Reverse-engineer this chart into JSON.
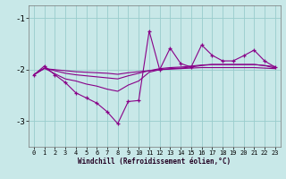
{
  "xlabel": "Windchill (Refroidissement éolien,°C)",
  "x": [
    0,
    1,
    2,
    3,
    4,
    5,
    6,
    7,
    8,
    9,
    10,
    11,
    12,
    13,
    14,
    15,
    16,
    17,
    18,
    19,
    20,
    21,
    22,
    23
  ],
  "main_line": [
    -2.1,
    -1.93,
    -2.1,
    -2.25,
    -2.45,
    -2.55,
    -2.65,
    -2.82,
    -3.05,
    -2.62,
    -2.6,
    -1.25,
    -2.0,
    -1.58,
    -1.88,
    -1.95,
    -1.52,
    -1.72,
    -1.83,
    -1.83,
    -1.73,
    -1.62,
    -1.83,
    -1.95
  ],
  "line2": [
    -2.1,
    -1.97,
    -2.08,
    -2.18,
    -2.22,
    -2.28,
    -2.32,
    -2.38,
    -2.42,
    -2.3,
    -2.22,
    -2.05,
    -2.0,
    -1.98,
    -1.97,
    -1.95,
    -1.92,
    -1.9,
    -1.9,
    -1.9,
    -1.9,
    -1.9,
    -1.92,
    -1.97
  ],
  "line3": [
    -2.1,
    -1.97,
    -2.02,
    -2.07,
    -2.1,
    -2.12,
    -2.14,
    -2.16,
    -2.18,
    -2.12,
    -2.07,
    -2.02,
    -1.98,
    -1.96,
    -1.95,
    -1.93,
    -1.91,
    -1.9,
    -1.9,
    -1.9,
    -1.9,
    -1.9,
    -1.92,
    -1.94
  ],
  "line4": [
    -2.1,
    -1.98,
    -2.0,
    -2.02,
    -2.04,
    -2.05,
    -2.06,
    -2.07,
    -2.09,
    -2.06,
    -2.04,
    -2.02,
    -2.0,
    -1.99,
    -1.98,
    -1.97,
    -1.96,
    -1.96,
    -1.96,
    -1.96,
    -1.96,
    -1.96,
    -1.97,
    -1.98
  ],
  "line_color": "#880088",
  "marker_color": "#880088",
  "bg_color": "#c8e8e8",
  "grid_color": "#99cccc",
  "ylim": [
    -3.5,
    -0.75
  ],
  "yticks": [
    -3,
    -2,
    -1
  ],
  "xticks": [
    0,
    1,
    2,
    3,
    4,
    5,
    6,
    7,
    8,
    9,
    10,
    11,
    12,
    13,
    14,
    15,
    16,
    17,
    18,
    19,
    20,
    21,
    22,
    23
  ]
}
